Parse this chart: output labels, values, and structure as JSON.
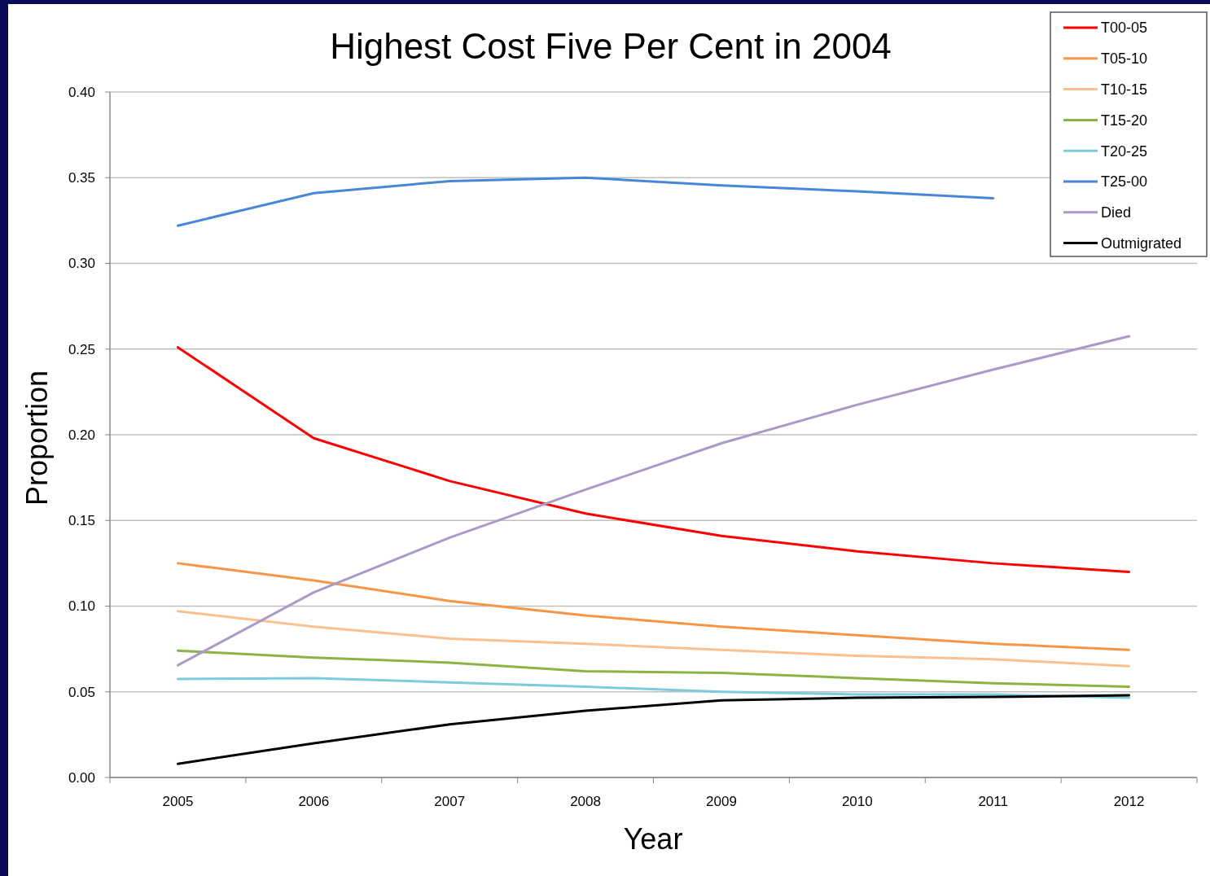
{
  "chart_data": {
    "type": "line",
    "title": "Highest Cost Five Per Cent in 2004",
    "xlabel": "Year",
    "ylabel": "Proportion",
    "categories": [
      "2005",
      "2006",
      "2007",
      "2008",
      "2009",
      "2010",
      "2011",
      "2012"
    ],
    "ylim": [
      0,
      0.4
    ],
    "yticks": [
      {
        "value": 0,
        "label": "0.00"
      },
      {
        "value": 0.05,
        "label": "0.05"
      },
      {
        "value": 0.1,
        "label": "0.10"
      },
      {
        "value": 0.15,
        "label": "0.15"
      },
      {
        "value": 0.2,
        "label": "0.20"
      },
      {
        "value": 0.25,
        "label": "0.25"
      },
      {
        "value": 0.3,
        "label": "0.30"
      },
      {
        "value": 0.35,
        "label": "0.35"
      },
      {
        "value": 0.4,
        "label": "0.40"
      }
    ],
    "grid": "y",
    "legend": "top right",
    "marker": "none",
    "line_style": "solid",
    "series": [
      {
        "name": "T00-05",
        "color": "#ff0000",
        "values": [
          0.251,
          0.198,
          0.173,
          0.154,
          0.141,
          0.132,
          0.125,
          0.12
        ]
      },
      {
        "name": "T05-10",
        "color": "#f79646",
        "values": [
          0.125,
          0.115,
          0.103,
          0.0945,
          0.088,
          0.083,
          0.078,
          0.0745
        ]
      },
      {
        "name": "T10-15",
        "color": "#fac090",
        "values": [
          0.097,
          0.088,
          0.081,
          0.078,
          0.0745,
          0.071,
          0.069,
          0.065
        ]
      },
      {
        "name": "T15-20",
        "color": "#8cb444",
        "values": [
          0.074,
          0.07,
          0.067,
          0.062,
          0.061,
          0.058,
          0.055,
          0.053
        ]
      },
      {
        "name": "T20-25",
        "color": "#7ecbdc",
        "values": [
          0.0575,
          0.058,
          0.0555,
          0.053,
          0.05,
          0.0485,
          0.0485,
          0.0465
        ]
      },
      {
        "name": "T25-00",
        "color": "#4a86d8",
        "values": [
          0.322,
          0.341,
          0.348,
          0.35,
          0.3455,
          0.342,
          0.338,
          null
        ]
      },
      {
        "name": "Died",
        "color": "#ab9ac8",
        "values": [
          0.0655,
          0.108,
          0.14,
          0.168,
          0.195,
          0.2175,
          0.238,
          0.2575
        ]
      },
      {
        "name": "Outmigrated",
        "color": "#000000",
        "values": [
          0.008,
          0.02,
          0.031,
          0.039,
          0.045,
          0.0465,
          0.047,
          0.048
        ]
      }
    ]
  }
}
